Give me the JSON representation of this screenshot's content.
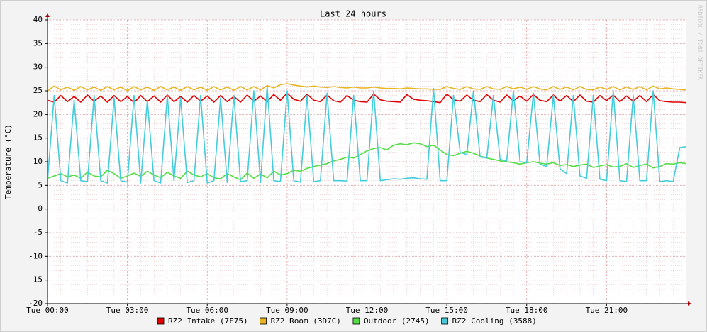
{
  "chart_data": {
    "type": "line",
    "title": "Last 24 hours",
    "y_label": "Temperature (°C)",
    "watermark": "RRDTOOL / TOBI OETIKER",
    "xlim": [
      0,
      24
    ],
    "xticks": [
      {
        "value": 0,
        "label": "Tue 00:00"
      },
      {
        "value": 3,
        "label": "Tue 03:00"
      },
      {
        "value": 6,
        "label": "Tue 06:00"
      },
      {
        "value": 9,
        "label": "Tue 09:00"
      },
      {
        "value": 12,
        "label": "Tue 12:00"
      },
      {
        "value": 15,
        "label": "Tue 15:00"
      },
      {
        "value": 18,
        "label": "Tue 18:00"
      },
      {
        "value": 21,
        "label": "Tue 21:00"
      }
    ],
    "ylim": [
      -20,
      40
    ],
    "yticks": [
      -20,
      -15,
      -10,
      -5,
      0,
      5,
      10,
      15,
      20,
      25,
      30,
      35,
      40
    ],
    "grid": true,
    "x": [
      0,
      0.25,
      0.5,
      0.75,
      1,
      1.25,
      1.5,
      1.75,
      2,
      2.25,
      2.5,
      2.75,
      3,
      3.25,
      3.5,
      3.75,
      4,
      4.25,
      4.5,
      4.75,
      5,
      5.25,
      5.5,
      5.75,
      6,
      6.25,
      6.5,
      6.75,
      7,
      7.25,
      7.5,
      7.75,
      8,
      8.25,
      8.5,
      8.75,
      9,
      9.25,
      9.5,
      9.75,
      10,
      10.25,
      10.5,
      10.75,
      11,
      11.25,
      11.5,
      11.75,
      12,
      12.25,
      12.5,
      12.75,
      13,
      13.25,
      13.5,
      13.75,
      14,
      14.25,
      14.5,
      14.75,
      15,
      15.25,
      15.5,
      15.75,
      16,
      16.25,
      16.5,
      16.75,
      17,
      17.25,
      17.5,
      17.75,
      18,
      18.25,
      18.5,
      18.75,
      19,
      19.25,
      19.5,
      19.75,
      20,
      20.25,
      20.5,
      20.75,
      21,
      21.25,
      21.5,
      21.75,
      22,
      22.25,
      22.5,
      22.75,
      23,
      23.25,
      23.5,
      23.75,
      24
    ],
    "series": [
      {
        "name": "RZ2 Intake (7F75)",
        "color": "#e00000",
        "values": [
          23,
          22.6,
          24,
          22.7,
          23.8,
          22.6,
          24.1,
          22.8,
          23.9,
          22.6,
          24,
          22.7,
          23.8,
          22.5,
          24,
          22.7,
          23.9,
          22.6,
          24.1,
          22.7,
          23.8,
          22.6,
          24,
          22.8,
          23.9,
          22.6,
          24,
          22.7,
          23.8,
          22.6,
          24.1,
          22.8,
          23.9,
          22.7,
          24.2,
          23,
          24.5,
          23.2,
          22.8,
          24.3,
          23,
          22.7,
          24.1,
          22.9,
          22.6,
          24,
          23,
          22.7,
          22.6,
          24.3,
          23.1,
          22.8,
          22.7,
          22.6,
          24.2,
          23.2,
          23,
          22.9,
          22.7,
          22.5,
          24.3,
          23.1,
          22.8,
          24.1,
          23,
          22.7,
          24.2,
          23,
          22.6,
          24.1,
          22.9,
          23.9,
          22.8,
          24.2,
          23,
          22.7,
          24.1,
          22.8,
          24,
          22.7,
          24.1,
          22.8,
          22.6,
          24,
          22.9,
          24.1,
          22.7,
          23.9,
          22.8,
          24,
          22.7,
          24.2,
          22.9,
          22.7,
          22.6,
          22.6,
          22.5
        ]
      },
      {
        "name": "RZ2 Room (3D7C)",
        "color": "#e8b420",
        "values": [
          25,
          26,
          25.2,
          25.8,
          25.1,
          25.9,
          25.2,
          25.8,
          25.1,
          25.9,
          25.2,
          25.8,
          25,
          25.9,
          25.2,
          25.8,
          25.1,
          25.9,
          25.2,
          25.8,
          25.1,
          25.9,
          25.2,
          25.8,
          25.1,
          25.9,
          25.2,
          25.8,
          25.1,
          25.9,
          25.2,
          25.9,
          25.2,
          26.1,
          25.6,
          26.3,
          26.5,
          26.2,
          26,
          25.8,
          26,
          25.8,
          25.7,
          25.9,
          25.7,
          25.6,
          25.8,
          25.6,
          25.6,
          25.8,
          25.6,
          25.5,
          25.5,
          25.4,
          25.6,
          25.5,
          25.4,
          25.4,
          25.3,
          25.3,
          25.9,
          25.5,
          25.3,
          25.9,
          25.4,
          25.3,
          25.9,
          25.4,
          25.3,
          25.9,
          25.4,
          25.8,
          25.3,
          25.9,
          25.4,
          25.2,
          25.9,
          25.3,
          25.8,
          25.2,
          25.9,
          25.3,
          25.2,
          25.8,
          25.3,
          25.9,
          25.2,
          25.8,
          25.3,
          25.9,
          25.2,
          26,
          25.4,
          25.6,
          25.4,
          25.3,
          25.2
        ]
      },
      {
        "name": "Outdoor (2745)",
        "color": "#55dd44",
        "values": [
          6.5,
          7,
          7.5,
          6.8,
          7.2,
          6.5,
          7.8,
          7,
          6.8,
          8.2,
          7.5,
          6.5,
          7,
          7.6,
          6.9,
          8,
          7.2,
          6.6,
          7.8,
          7,
          6.5,
          8,
          7.2,
          6.8,
          7.5,
          6.6,
          6.4,
          7.5,
          6.8,
          6.2,
          7.6,
          6.5,
          7.4,
          6.6,
          8,
          7.2,
          7.5,
          8.2,
          8,
          8.6,
          9,
          9.3,
          9.6,
          10.2,
          10.5,
          11,
          10.8,
          11.5,
          12.3,
          12.8,
          13,
          12.5,
          13.5,
          13.8,
          13.6,
          14,
          13.8,
          13.2,
          13.5,
          12.5,
          11.5,
          11.3,
          11.8,
          12.2,
          11.8,
          11.2,
          10.8,
          10.5,
          10.2,
          10,
          9.8,
          9.5,
          9.8,
          10,
          9.7,
          9.5,
          9.8,
          9.2,
          9.4,
          9,
          9.3,
          9.5,
          8.8,
          9.1,
          9.4,
          8.9,
          9,
          9.6,
          8.8,
          9.2,
          9.5,
          8.7,
          9,
          9.6,
          9.5,
          9.8,
          9.6
        ]
      },
      {
        "name": "RZ2 Cooling (3588)",
        "color": "#44ccdd",
        "values": [
          6,
          24,
          6,
          5.5,
          23,
          6,
          5.8,
          24,
          6,
          5.5,
          23.5,
          6,
          5.7,
          24,
          5.5,
          23,
          6,
          5.5,
          24,
          6,
          23.5,
          5.6,
          6,
          24,
          5.5,
          6,
          23.5,
          5.6,
          24,
          5.8,
          6,
          25,
          5.6,
          26,
          6,
          5.8,
          25,
          6,
          5.7,
          24,
          5.8,
          6,
          24.5,
          6,
          6,
          5.9,
          24,
          6,
          6,
          25,
          6,
          6.2,
          6.4,
          6.3,
          6.5,
          6.6,
          6.4,
          6.3,
          25.5,
          6,
          6,
          24,
          12,
          11.5,
          25,
          11,
          10.8,
          24,
          10.5,
          10.2,
          25,
          10,
          9.8,
          24.5,
          9.5,
          9,
          24,
          8.5,
          7.5,
          24,
          7,
          6.5,
          24,
          6.3,
          6,
          25,
          6,
          5.8,
          24,
          6,
          6,
          25,
          5.8,
          6,
          5.8,
          13,
          13.2
        ]
      }
    ]
  }
}
